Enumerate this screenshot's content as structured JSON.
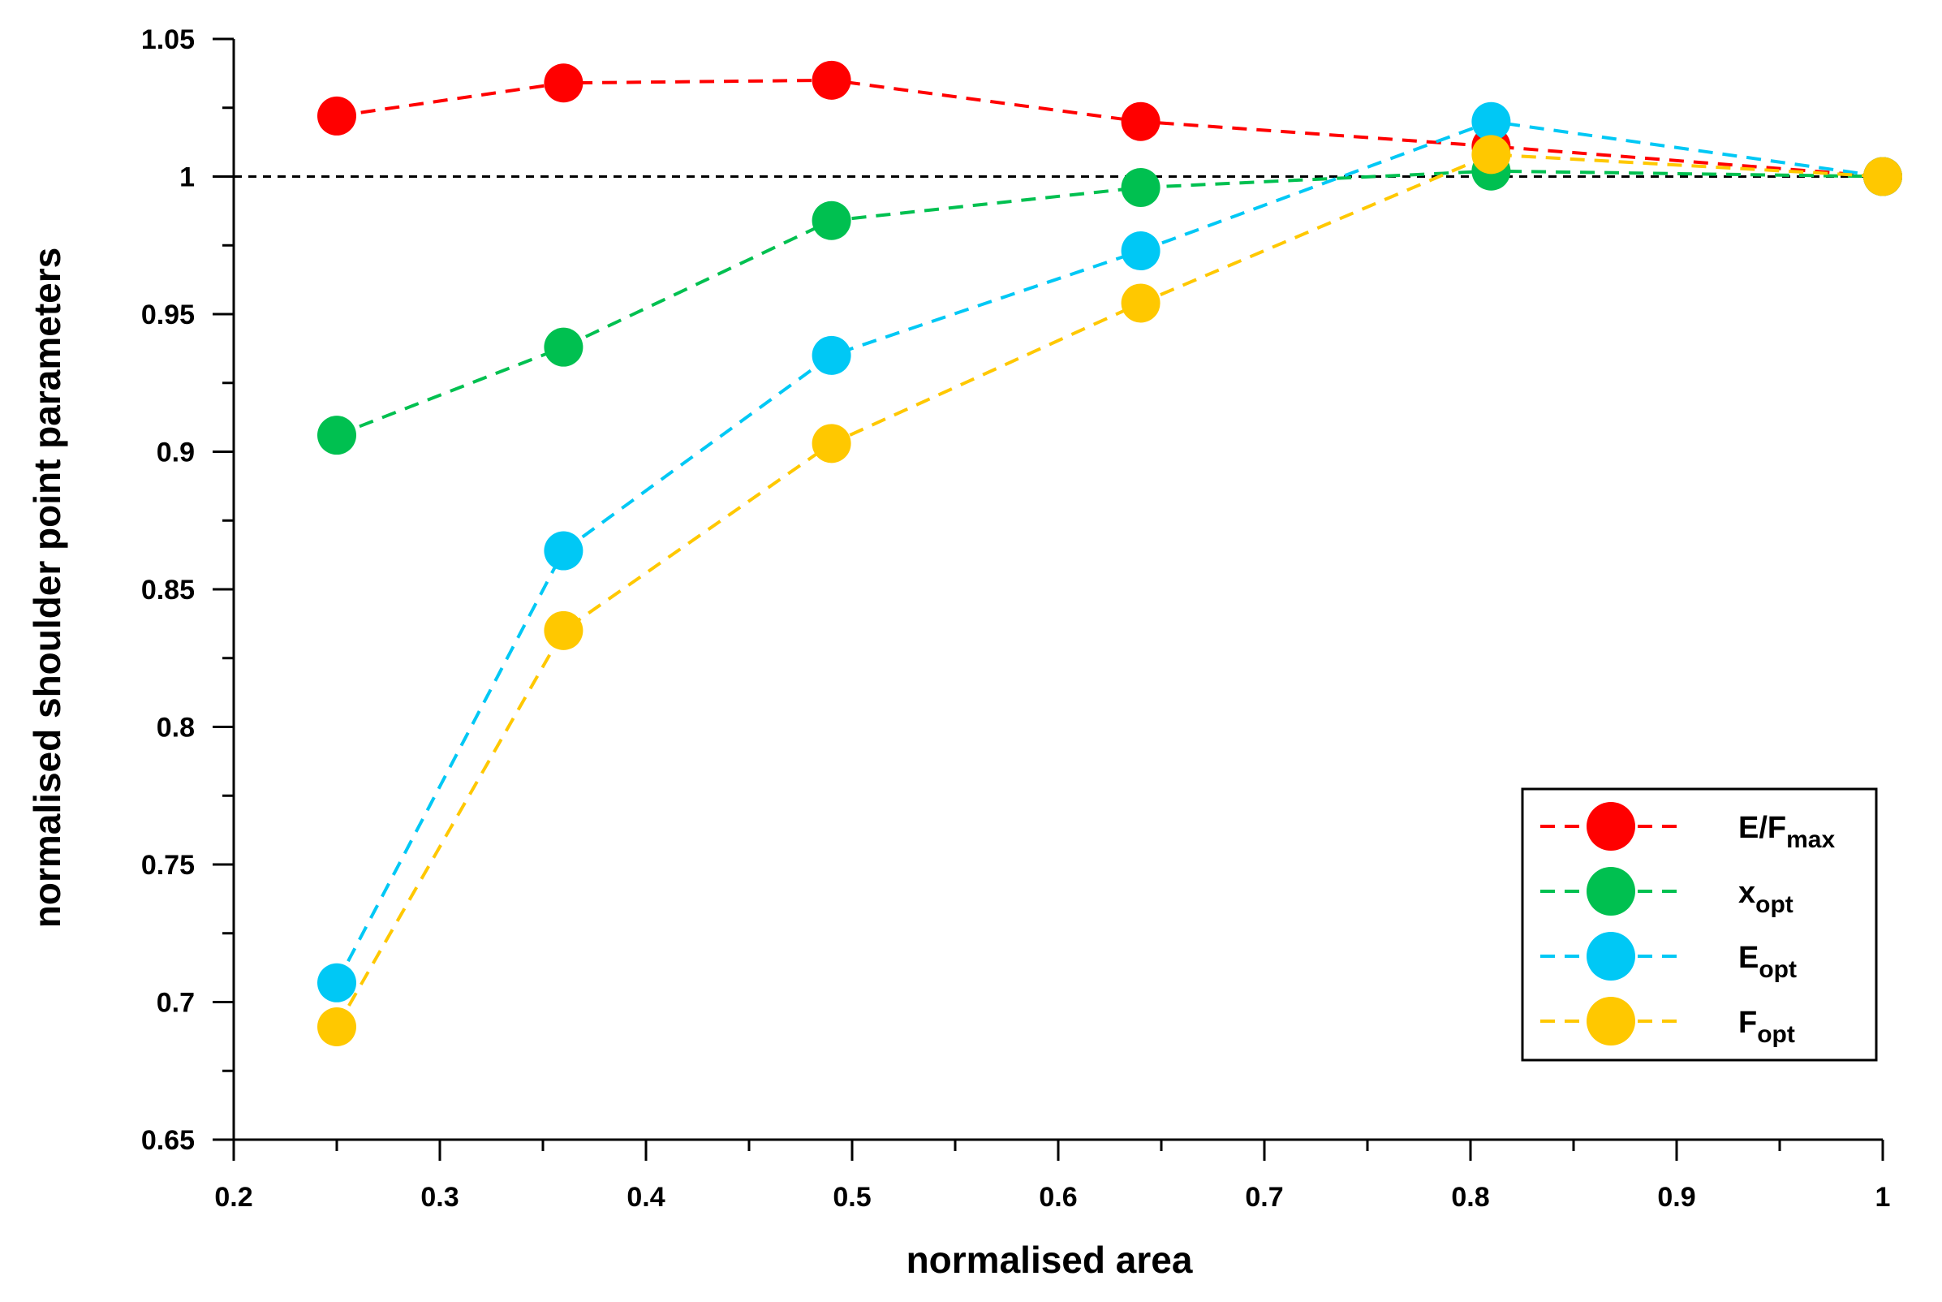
{
  "chart_data": {
    "type": "line",
    "title": "",
    "xlabel": "normalised area",
    "ylabel": "normalised shoulder point parameters",
    "xlim": [
      0.2,
      1.0
    ],
    "ylim": [
      0.65,
      1.05
    ],
    "x_ticks": [
      0.2,
      0.3,
      0.4,
      0.5,
      0.6,
      0.7,
      0.8,
      0.9,
      1.0
    ],
    "x_tick_labels": [
      "0.2",
      "0.3",
      "0.4",
      "0.5",
      "0.6",
      "0.7",
      "0.8",
      "0.9",
      "1"
    ],
    "y_ticks": [
      0.65,
      0.7,
      0.75,
      0.8,
      0.85,
      0.9,
      0.95,
      1.0,
      1.05
    ],
    "y_tick_labels": [
      "0.65",
      "0.7",
      "0.75",
      "0.8",
      "0.85",
      "0.9",
      "0.95",
      "1",
      "1.05"
    ],
    "reference_line": {
      "y": 1.0,
      "style": "dashed",
      "color": "#000000"
    },
    "legend_position": "bottom-right",
    "x": [
      0.25,
      0.36,
      0.49,
      0.64,
      0.81,
      1.0
    ],
    "series": [
      {
        "name": "E/F",
        "subscript": "max",
        "color": "#ff0000",
        "values": [
          1.022,
          1.034,
          1.035,
          1.02,
          1.011,
          1.0
        ]
      },
      {
        "name": "x",
        "subscript": "opt",
        "color": "#00c050",
        "values": [
          0.906,
          0.938,
          0.984,
          0.996,
          1.002,
          1.0
        ]
      },
      {
        "name": "E",
        "subscript": "opt",
        "color": "#00c8f5",
        "values": [
          0.707,
          0.864,
          0.935,
          0.973,
          1.02,
          1.0
        ]
      },
      {
        "name": "F",
        "subscript": "opt",
        "color": "#ffc800",
        "values": [
          0.691,
          0.835,
          0.903,
          0.954,
          1.008,
          1.0
        ]
      }
    ]
  }
}
